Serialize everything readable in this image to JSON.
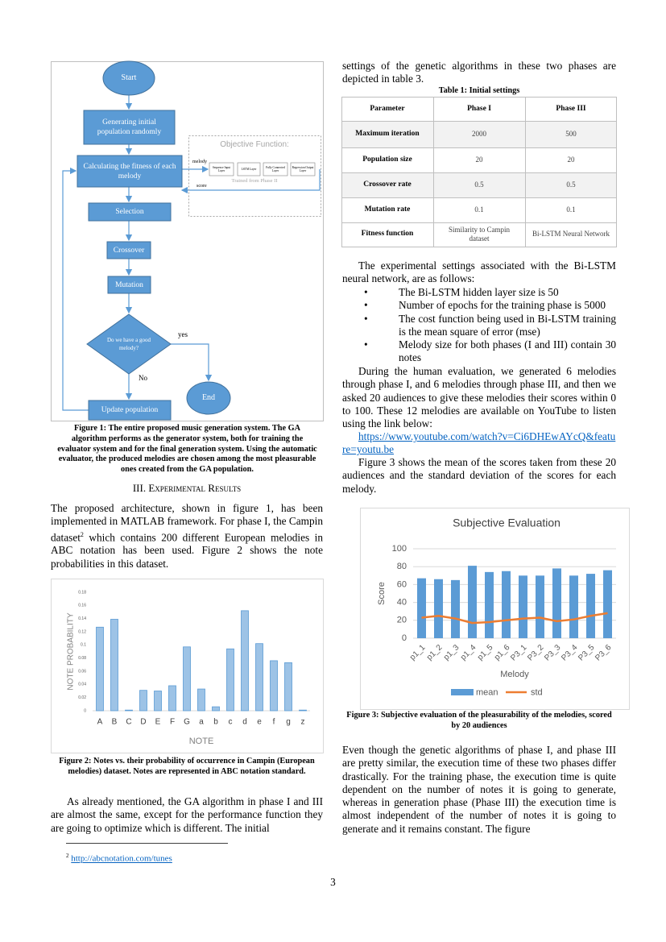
{
  "flowchart": {
    "nodes": [
      {
        "label": "Start"
      },
      {
        "label": "Generating initial population randomly"
      },
      {
        "label": "Calculating the fitness of each melody"
      },
      {
        "label": "Selection"
      },
      {
        "label": "Crossover"
      },
      {
        "label": "Mutation"
      },
      {
        "label": "Do we have a good melody?"
      },
      {
        "label": "Update population"
      },
      {
        "label": "End"
      }
    ],
    "objective": {
      "title": "Objective Function:",
      "layers": [
        "Sequence Input Layer",
        "LSTM Layer",
        "Fully Connected Layer",
        "Regression Output Layer"
      ],
      "note": "Trained from Phase II"
    },
    "edge_labels": {
      "melody": "melody",
      "score": "score",
      "yes": "yes",
      "no": "No"
    }
  },
  "figure1_caption": "Figure 1: The entire proposed music generation system. The GA algorithm performs as the generator system, both for training the evaluator system and for the final generation system. Using the automatic evaluator, the produced melodies are chosen among the most pleasurable ones created from the GA population.",
  "section_heading": "III. Experimental Results",
  "paragraph1": {
    "before": "The proposed architecture, shown in figure 1, has been implemented in MATLAB framework. For phase I, the Campin dataset",
    "footnote_mark": "2",
    "after": " which contains 200 different European melodies in ABC notation has been used. Figure 2 shows the note probabilities in this dataset."
  },
  "figure2_caption": "Figure 2: Notes vs. their probability of occurrence in Campin (European melodies) dataset. Notes are represented in ABC notation standard.",
  "paragraph2": "As already mentioned, the GA algorithm in phase I and III are almost the same, except for the performance function they are going to optimize which is different. The initial",
  "footnote": {
    "mark": "2",
    "link": "http://abcnotation.com/tunes"
  },
  "page_number": "3",
  "paragraph3": "settings of the genetic algorithms in these two phases are depicted in table 3.",
  "table": {
    "caption": "Table 1: Initial settings",
    "header": [
      "Parameter",
      "Phase I",
      "Phase III"
    ],
    "rows": [
      [
        "Maximum iteration",
        "2000",
        "500"
      ],
      [
        "Population size",
        "20",
        "20"
      ],
      [
        "Crossover rate",
        "0.5",
        "0.5"
      ],
      [
        "Mutation rate",
        "0.1",
        "0.1"
      ],
      [
        "Fitness function",
        "Similarity to Campin dataset",
        "Bi-LSTM Neural Network"
      ]
    ]
  },
  "paragraph4": "The experimental settings associated with the Bi-LSTM neural network, are as follows:",
  "bullets": [
    "The Bi-LSTM hidden layer size is 50",
    "Number of epochs for the training phase is 5000",
    "The cost function being used in Bi-LSTM training is the mean square of error (mse)",
    "Melody size for both phases (I and III) contain 30 notes"
  ],
  "paragraph5": "During the human evaluation, we generated 6 melodies through phase I, and 6 melodies through phase III, and then we asked 20 audiences to give these melodies their scores within 0 to 100. These 12 melodies are available on YouTube to listen using the link below:",
  "link": "https://www.youtube.com/watch?v=Ci6DHEwAYcQ&feature=youtu.be",
  "paragraph6": "Figure 3 shows the mean of the scores taken from these 20 audiences and the standard deviation of the scores for each melody.",
  "figure3_caption": "Figure 3: Subjective evaluation of the pleasurability of the melodies, scored by 20 audiences",
  "paragraph7": "Even though the genetic algorithms of phase I, and phase III are pretty similar, the execution time of these two phases differ drastically. For the training phase, the execution time is quite dependent on the number of notes it is going to generate, whereas in generation phase (Phase III) the execution time is almost independent of the number of notes it is going to generate and it remains constant. The figure",
  "chart_data": [
    {
      "type": "bar",
      "categories": [
        "A",
        "B",
        "C",
        "D",
        "E",
        "F",
        "G",
        "a",
        "b",
        "c",
        "d",
        "e",
        "f",
        "g",
        "z"
      ],
      "values": [
        0.127,
        0.139,
        0.001,
        0.031,
        0.03,
        0.038,
        0.097,
        0.033,
        0.006,
        0.094,
        0.152,
        0.102,
        0.076,
        0.073,
        0.001
      ],
      "color": "#9dc3e6",
      "xlabel": "NOTE",
      "ylabel": "NOTE PROBABILITY",
      "ylim": [
        0,
        0.18
      ],
      "yticks": [
        0,
        0.02,
        0.04,
        0.06,
        0.08,
        0.1,
        0.12,
        0.14,
        0.16,
        0.18
      ],
      "grid": false
    },
    {
      "type": "combo",
      "title": "Subjective Evaluation",
      "xlabel": "Melody",
      "ylabel": "Score",
      "categories": [
        "p1_1",
        "p1_2",
        "p1_3",
        "p1_4",
        "p1_5",
        "p1_6",
        "P3_1",
        "P3_2",
        "P3_3",
        "P3_4",
        "P3_5",
        "P3_6"
      ],
      "series": [
        {
          "name": "mean",
          "kind": "bar",
          "color": "#5b9bd5",
          "values": [
            67,
            66,
            65,
            81,
            74,
            75,
            70,
            70,
            78,
            70,
            72,
            76
          ]
        },
        {
          "name": "std",
          "kind": "line",
          "color": "#ed7d31",
          "values": [
            23,
            25,
            22,
            17,
            18,
            20,
            22,
            23,
            19,
            21,
            25,
            28
          ]
        }
      ],
      "ylim": [
        0,
        100
      ],
      "yticks": [
        0,
        20,
        40,
        60,
        80,
        100
      ],
      "grid": true,
      "legend": "bottom"
    }
  ]
}
